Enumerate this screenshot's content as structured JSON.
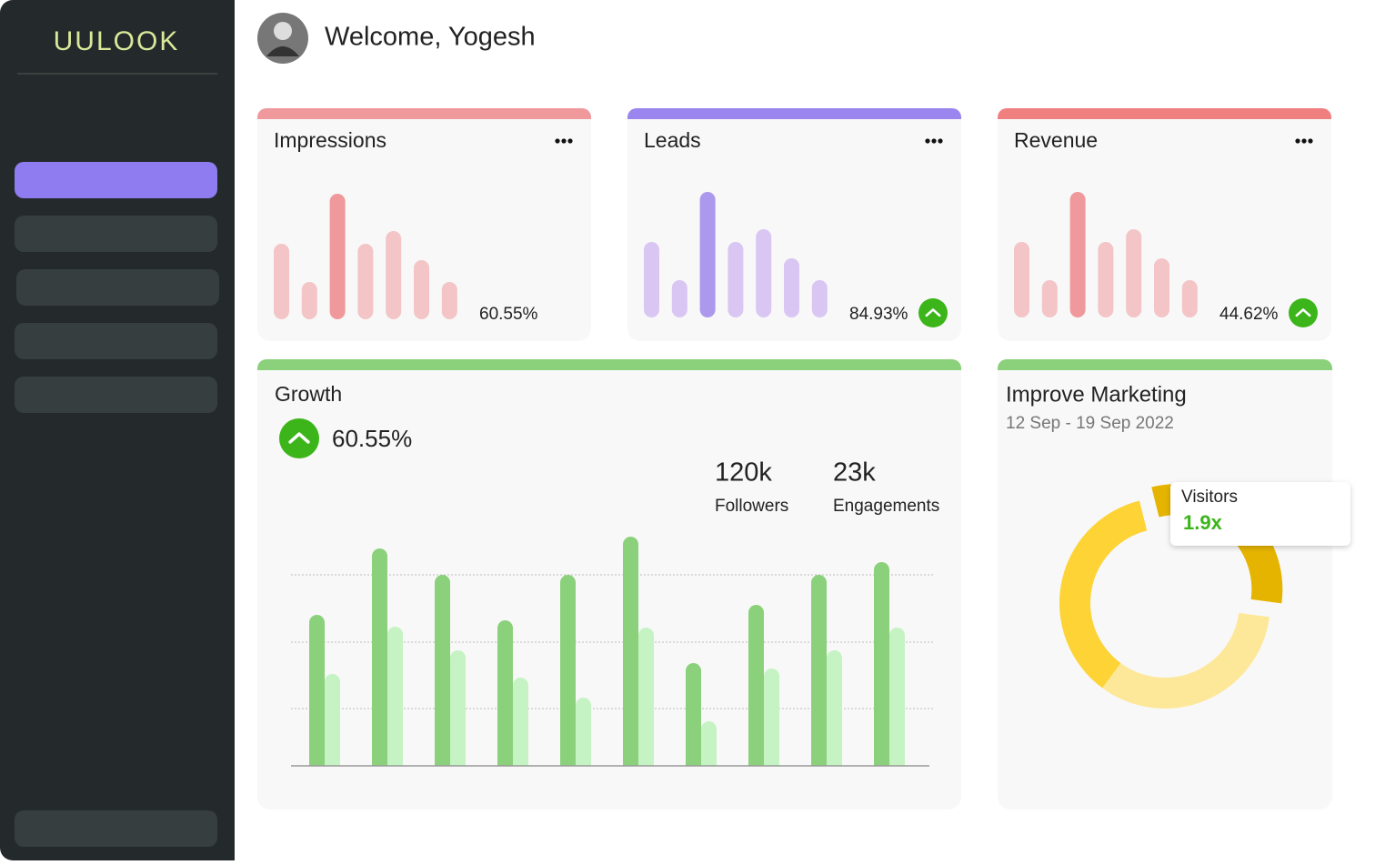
{
  "logo": "UULOOK",
  "header": {
    "greeting": "Welcome, Yogesh"
  },
  "cards": [
    {
      "title": "Impressions",
      "percent": "60.55%",
      "bars": [
        83,
        41,
        138,
        83,
        97,
        65,
        41
      ],
      "color": "#f3c5c7",
      "highlight_color": "#f0999c",
      "highlight": 2,
      "stripe": "#f0999c",
      "trend_up": false
    },
    {
      "title": "Leads",
      "percent": "84.93%",
      "bars": [
        83,
        41,
        138,
        83,
        97,
        65,
        41
      ],
      "color": "#d9c6f3",
      "highlight_color": "#ac98ec",
      "highlight": 2,
      "stripe": "#9a86ee",
      "trend_up": true
    },
    {
      "title": "Revenue",
      "percent": "44.62%",
      "bars": [
        83,
        41,
        138,
        83,
        97,
        65,
        41
      ],
      "color": "#f3c5c7",
      "highlight_color": "#f0999c",
      "highlight": 2,
      "stripe": "#f08080",
      "trend_up": true
    }
  ],
  "growth": {
    "title": "Growth",
    "percent": "60.55%",
    "stats": [
      {
        "value": "120k",
        "label": "Followers"
      },
      {
        "value": "23k",
        "label": "Engagements"
      }
    ]
  },
  "marketing": {
    "title": "Improve Marketing",
    "dates": "12 Sep - 19 Sep 2022",
    "tooltip": {
      "label": "Visitors",
      "value": "1.9x"
    }
  },
  "chart_data": [
    {
      "type": "bar",
      "series": [
        {
          "color": "#8bd17c",
          "values": [
            166,
            239,
            210,
            160,
            210,
            252,
            113,
            177,
            210,
            224
          ]
        },
        {
          "color": "#c5f3c3",
          "values": [
            101,
            153,
            127,
            97,
            75,
            152,
            49,
            107,
            127,
            152
          ]
        }
      ]
    },
    {
      "type": "pie",
      "values": [
        31,
        33,
        36
      ],
      "colors": [
        "#e5b400",
        "#fde89a",
        "#fdd335"
      ],
      "explode": 0
    }
  ]
}
